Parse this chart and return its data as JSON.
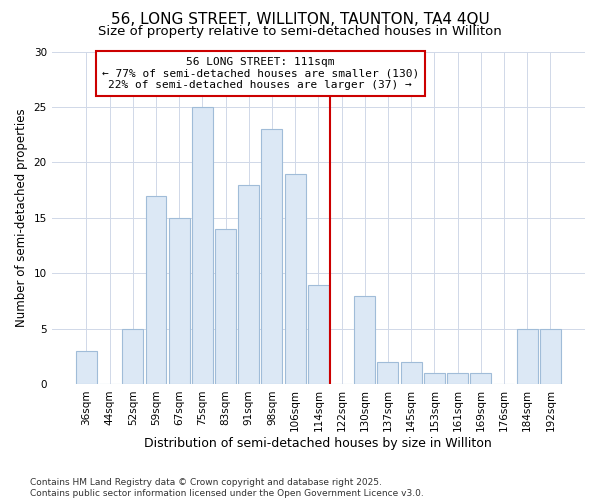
{
  "title": "56, LONG STREET, WILLITON, TAUNTON, TA4 4QU",
  "subtitle": "Size of property relative to semi-detached houses in Williton",
  "xlabel": "Distribution of semi-detached houses by size in Williton",
  "ylabel": "Number of semi-detached properties",
  "categories": [
    "36sqm",
    "44sqm",
    "52sqm",
    "59sqm",
    "67sqm",
    "75sqm",
    "83sqm",
    "91sqm",
    "98sqm",
    "106sqm",
    "114sqm",
    "122sqm",
    "130sqm",
    "137sqm",
    "145sqm",
    "153sqm",
    "161sqm",
    "169sqm",
    "176sqm",
    "184sqm",
    "192sqm"
  ],
  "values": [
    3,
    0,
    5,
    17,
    15,
    25,
    14,
    18,
    23,
    19,
    9,
    0,
    8,
    2,
    2,
    1,
    1,
    1,
    0,
    5,
    5
  ],
  "bar_color": "#dce8f5",
  "bar_edge_color": "#a0bcd8",
  "highlight_line_index": 10.5,
  "highlight_line_color": "#cc0000",
  "annotation_text": "56 LONG STREET: 111sqm\n← 77% of semi-detached houses are smaller (130)\n22% of semi-detached houses are larger (37) →",
  "annotation_box_color": "#cc0000",
  "annotation_box_fill": "#ffffff",
  "ylim": [
    0,
    30
  ],
  "yticks": [
    0,
    5,
    10,
    15,
    20,
    25,
    30
  ],
  "background_color": "#ffffff",
  "grid_color": "#d0d8e8",
  "footer_text": "Contains HM Land Registry data © Crown copyright and database right 2025.\nContains public sector information licensed under the Open Government Licence v3.0.",
  "title_fontsize": 11,
  "subtitle_fontsize": 9.5,
  "xlabel_fontsize": 9,
  "ylabel_fontsize": 8.5,
  "tick_fontsize": 7.5,
  "annotation_fontsize": 8,
  "footer_fontsize": 6.5
}
